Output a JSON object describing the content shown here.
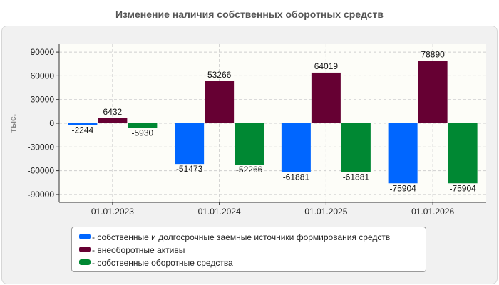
{
  "chart_data": {
    "type": "bar",
    "title": "Изменение наличия собственных оборотных средств",
    "ylabel": "тыс.",
    "xlabel": "",
    "categories": [
      "01.01.2023",
      "01.01.2024",
      "01.01.2025",
      "01.01.2026"
    ],
    "ylim": [
      -100000,
      100000
    ],
    "yticks": [
      90000,
      60000,
      30000,
      0,
      -30000,
      -60000,
      -90000
    ],
    "grid": true,
    "legend_position": "bottom",
    "series": [
      {
        "name": "собственные и долгосрочные заемные источники формирования средств",
        "color": "#0066ff",
        "values": [
          -2244,
          -51473,
          -61881,
          -75904
        ]
      },
      {
        "name": "внеоборотные активы",
        "color": "#660033",
        "values": [
          6432,
          53266,
          64019,
          78890
        ]
      },
      {
        "name": "собственные оборотные средства",
        "color": "#008833",
        "values": [
          -5930,
          -52266,
          -61881,
          -75904
        ]
      }
    ]
  }
}
